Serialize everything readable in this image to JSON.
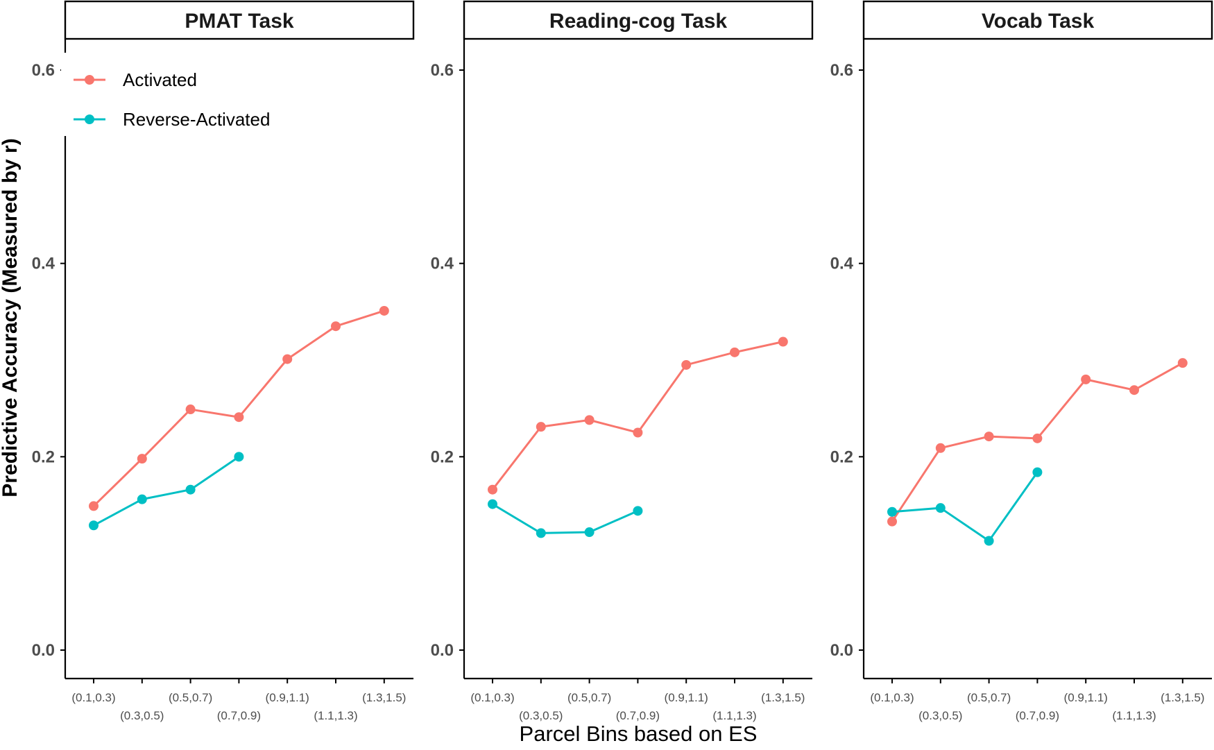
{
  "chart_data": {
    "type": "line",
    "xlabel": "Parcel Bins based on ES",
    "ylabel": "Predictive Accuracy (Measured by r)",
    "ylim": [
      -0.028,
      0.625
    ],
    "yticks": [
      "0.0",
      "0.2",
      "0.4",
      "0.6"
    ],
    "categories": [
      "(0.1,0.3)",
      "(0.3,0.5)",
      "(0.5,0.7)",
      "(0.7,0.9)",
      "(0.9,1.1)",
      "(1.1,1.3)",
      "(1.3,1.5)"
    ],
    "legend": {
      "placement": "top-left",
      "entries": [
        {
          "name": "Activated",
          "color": "#F8766D"
        },
        {
          "name": "Reverse-Activated",
          "color": "#00BFC4"
        }
      ]
    },
    "panels": [
      {
        "title": "PMAT Task",
        "series": [
          {
            "name": "Activated",
            "values": [
              0.149,
              0.198,
              0.249,
              0.241,
              0.301,
              0.335,
              0.351
            ]
          },
          {
            "name": "Reverse-Activated",
            "values": [
              0.129,
              0.156,
              0.166,
              0.2,
              null,
              null,
              null
            ]
          }
        ]
      },
      {
        "title": "Reading-cog Task",
        "series": [
          {
            "name": "Activated",
            "values": [
              0.166,
              0.231,
              0.238,
              0.225,
              0.295,
              0.308,
              0.319
            ]
          },
          {
            "name": "Reverse-Activated",
            "values": [
              0.151,
              0.121,
              0.122,
              0.144,
              null,
              null,
              null
            ]
          }
        ]
      },
      {
        "title": "Vocab Task",
        "series": [
          {
            "name": "Activated",
            "values": [
              0.133,
              0.209,
              0.221,
              0.219,
              0.28,
              0.269,
              0.297
            ]
          },
          {
            "name": "Reverse-Activated",
            "values": [
              0.143,
              0.147,
              0.113,
              0.184,
              null,
              null,
              null
            ]
          }
        ]
      }
    ]
  }
}
